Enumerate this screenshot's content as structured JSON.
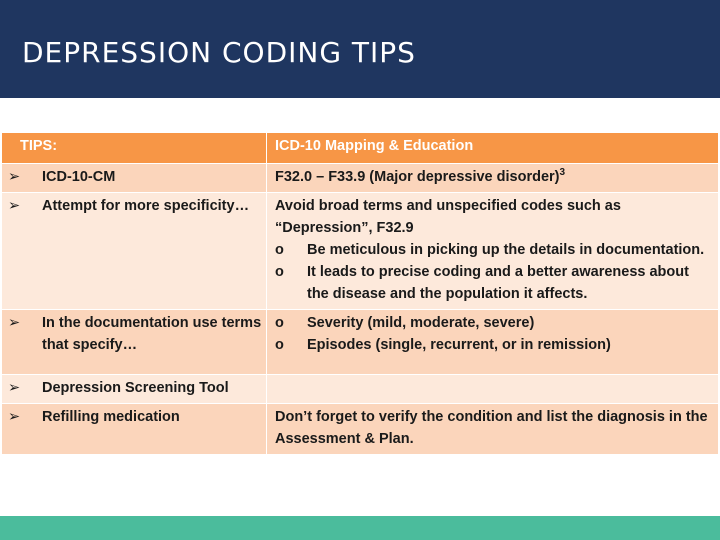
{
  "header": {
    "title": "DEPRESSION CODING TIPS"
  },
  "table": {
    "col_headers": [
      "TIPS:",
      "ICD-10 Mapping & Education"
    ],
    "rows": [
      {
        "tips": [
          "ICD-10-CM",
          "Attempt for more specificity…"
        ],
        "mapping_lines": [
          "F32.0 – F33.9  (Major depressive disorder)",
          "Avoid broad terms and unspecified codes such as “Depression”, F32.9"
        ],
        "sup": "3",
        "sub_bullets": [
          "Be meticulous in picking up the details in documentation.",
          "It leads to precise coding and a better awareness about the disease and the population it affects."
        ]
      },
      {
        "tip": "In the documentation use terms that specify…",
        "sub_bullets": [
          "Severity (mild, moderate, severe)",
          "Episodes (single, recurrent, or in remission)"
        ]
      },
      {
        "tip": "Depression Screening Tool",
        "mapping": ""
      },
      {
        "tip": "Refilling medication",
        "mapping": "Don’t forget to verify the condition and list the diagnosis in the Assessment & Plan."
      }
    ],
    "bullet_glyph": "➢",
    "sub_glyph": "o"
  },
  "colors": {
    "header_bg": "#1f3660",
    "table_header": "#f79646",
    "row_dark": "#fbd5bb",
    "row_light": "#fde9db",
    "footer": "#4bbc9c"
  }
}
